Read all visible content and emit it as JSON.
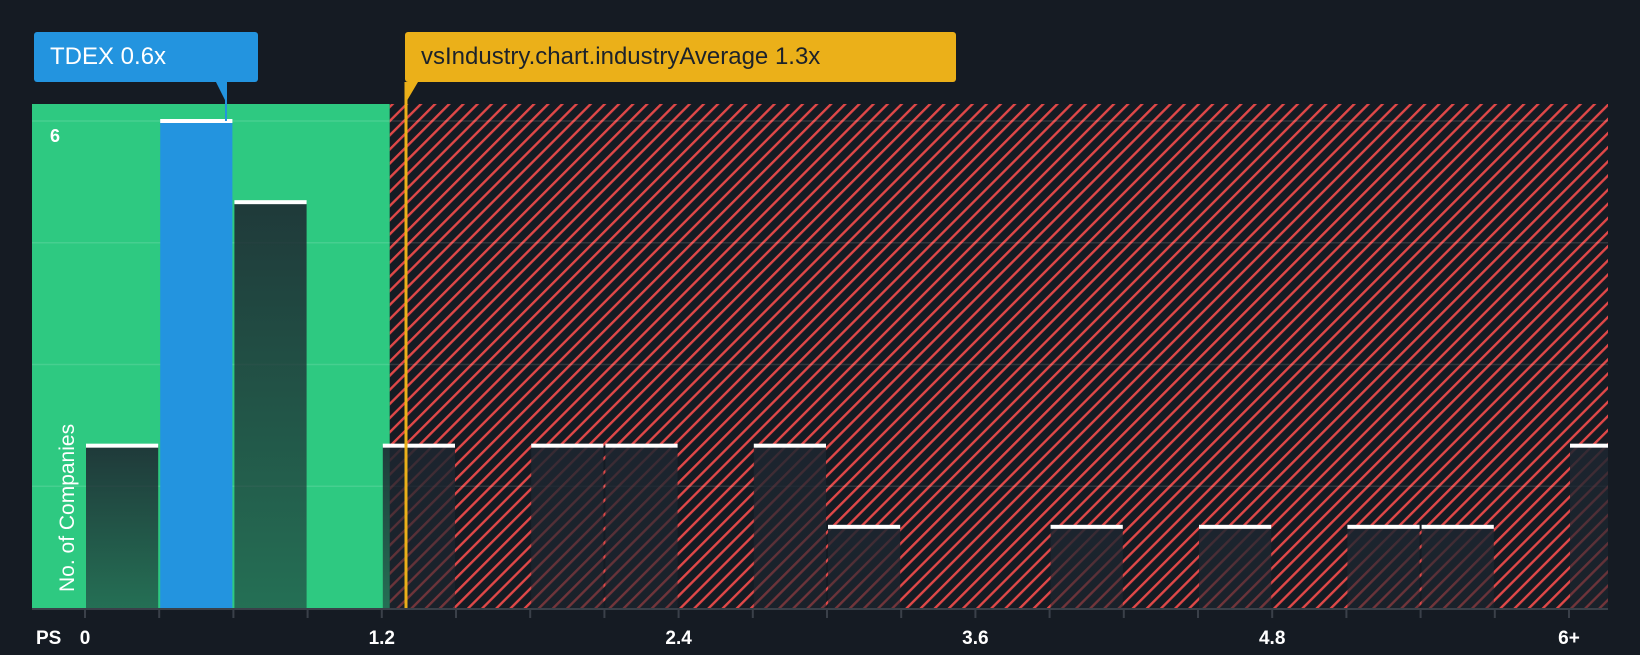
{
  "labels": {
    "company": "TDEX 0.6x",
    "industry": "vsIndustry.chart.industryAverage 1.3x",
    "y_axis_title": "No. of Companies",
    "x_axis_prefix": "PS",
    "y_max_tick": "6"
  },
  "colors": {
    "background": "#151b23",
    "undervalued_zone": "#2ec981",
    "overvalued_hatch": "#e04848",
    "company_bar": "#2394df",
    "industry_line": "#ebb019",
    "bar_cap": "#ffffff",
    "gridline": "#ffffff"
  },
  "chart_data": {
    "type": "bar",
    "title": "",
    "xlabel": "PS",
    "ylabel": "No. of Companies",
    "bin_width": 0.3,
    "x_ticks": [
      "0",
      "1.2",
      "2.4",
      "3.6",
      "4.8",
      "6+"
    ],
    "x_tick_values": [
      0,
      1.2,
      2.4,
      3.6,
      4.8,
      6.0
    ],
    "ylim": [
      0,
      6
    ],
    "y_gridlines": [
      1.5,
      3,
      4.5,
      6
    ],
    "categories": [
      "0-0.3",
      "0.3-0.6",
      "0.6-0.9",
      "0.9-1.2",
      "1.2-1.5",
      "1.5-1.8",
      "1.8-2.1",
      "2.1-2.4",
      "2.4-2.7",
      "2.7-3.0",
      "3.0-3.3",
      "3.3-3.6",
      "3.6-3.9",
      "3.9-4.2",
      "4.2-4.5",
      "4.5-4.8",
      "4.8-5.1",
      "5.1-5.4",
      "5.4-5.7",
      "5.7-6.0",
      "6+"
    ],
    "values": [
      2,
      6,
      5,
      0,
      2,
      0,
      2,
      2,
      0,
      2,
      1,
      0,
      0,
      1,
      0,
      1,
      0,
      1,
      1,
      0,
      2
    ],
    "highlight_index": 1,
    "company_value": 0.6,
    "industry_average": 1.3,
    "undervalued_threshold": 1.2,
    "annotations": [
      "TDEX 0.6x",
      "vsIndustry.chart.industryAverage 1.3x"
    ]
  }
}
